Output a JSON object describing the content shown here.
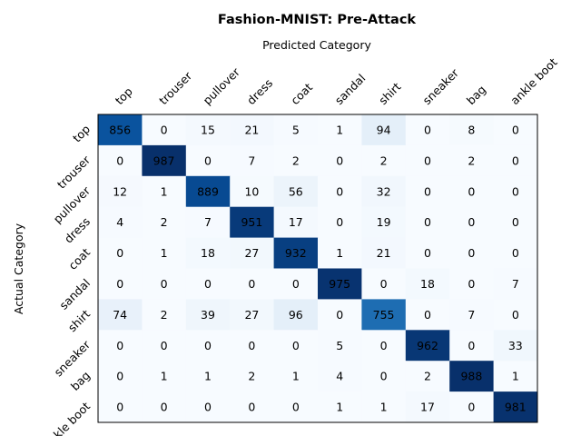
{
  "chart_data": {
    "type": "heatmap",
    "title": "Fashion-MNIST: Pre-Attack",
    "xlabel": "Predicted Category",
    "ylabel": "Actual Category",
    "x_categories": [
      "top",
      "trouser",
      "pullover",
      "dress",
      "coat",
      "sandal",
      "shirt",
      "sneaker",
      "bag",
      "ankle boot"
    ],
    "y_categories": [
      "top",
      "trouser",
      "pullover",
      "dress",
      "coat",
      "sandal",
      "shirt",
      "sneaker",
      "bag",
      "ankle boot"
    ],
    "values": [
      [
        856,
        0,
        15,
        21,
        5,
        1,
        94,
        0,
        8,
        0
      ],
      [
        0,
        987,
        0,
        7,
        2,
        0,
        2,
        0,
        2,
        0
      ],
      [
        12,
        1,
        889,
        10,
        56,
        0,
        32,
        0,
        0,
        0
      ],
      [
        4,
        2,
        7,
        951,
        17,
        0,
        19,
        0,
        0,
        0
      ],
      [
        0,
        1,
        18,
        27,
        932,
        1,
        21,
        0,
        0,
        0
      ],
      [
        0,
        0,
        0,
        0,
        0,
        975,
        0,
        18,
        0,
        7
      ],
      [
        74,
        2,
        39,
        27,
        96,
        0,
        755,
        0,
        7,
        0
      ],
      [
        0,
        0,
        0,
        0,
        0,
        5,
        0,
        962,
        0,
        33
      ],
      [
        0,
        1,
        1,
        2,
        1,
        4,
        0,
        2,
        988,
        1
      ],
      [
        0,
        0,
        0,
        0,
        0,
        1,
        1,
        17,
        0,
        981
      ]
    ],
    "colormap": "Blues",
    "color_low": "#f7fbff",
    "color_high": "#08306b",
    "grid": false
  }
}
